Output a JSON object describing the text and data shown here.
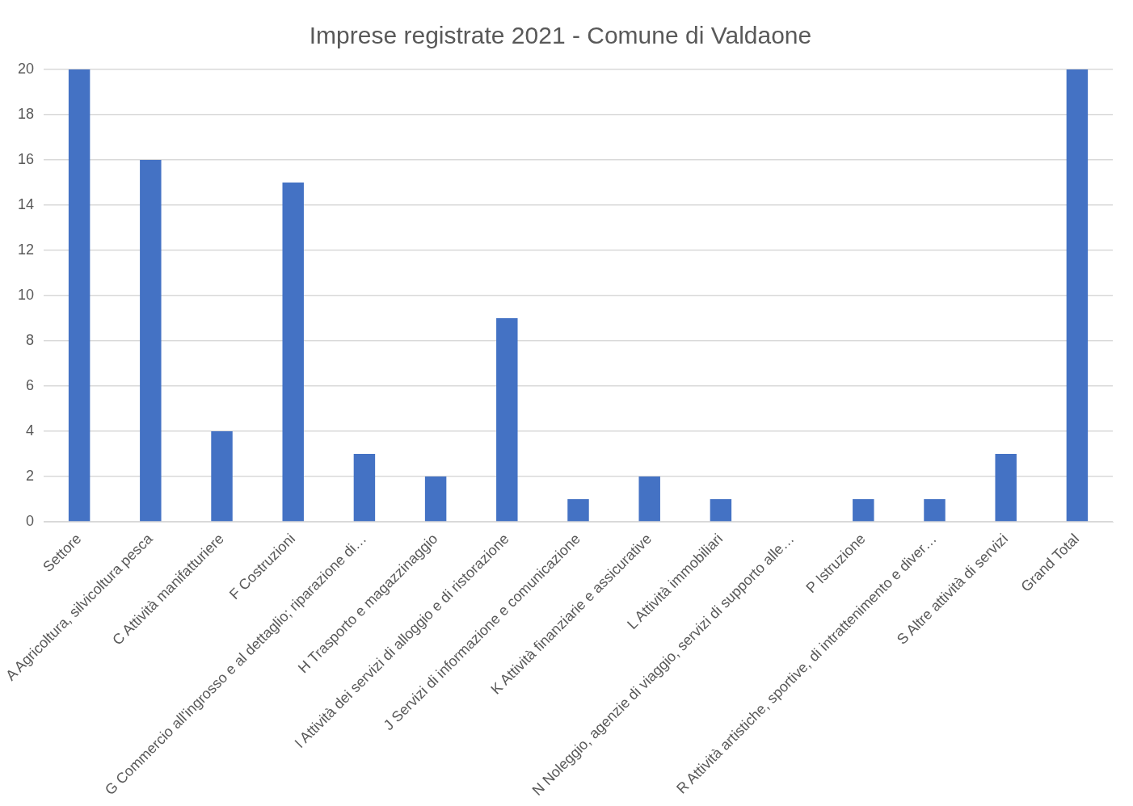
{
  "chart_data": {
    "type": "bar",
    "title": "Imprese registrate 2021 - Comune di Valdaone",
    "categories": [
      "Settore",
      "A Agricoltura, silvicoltura pesca",
      "C Attività manifatturiere",
      "F Costruzioni",
      "G Commercio all'ingrosso e al dettaglio; riparazione di…",
      "H Trasporto e magazzinaggio",
      "I Attività dei servizi di alloggio e di ristorazione",
      "J Servizi di informazione e comunicazione",
      "K Attività finanziarie e assicurative",
      "L Attività immobiliari",
      "N Noleggio, agenzie di viaggio, servizi di supporto alle…",
      "P Istruzione",
      "R Attività artistiche, sportive, di intrattenimento e diver…",
      "S Altre attività di servizi",
      "Grand Total"
    ],
    "values": [
      20,
      16,
      4,
      15,
      3,
      2,
      9,
      1,
      2,
      1,
      0,
      1,
      1,
      3,
      20
    ],
    "color": "#4472c4",
    "ylim": [
      0,
      20
    ],
    "yticks": [
      0,
      2,
      4,
      6,
      8,
      10,
      12,
      14,
      16,
      18,
      20
    ],
    "grid": "y"
  }
}
